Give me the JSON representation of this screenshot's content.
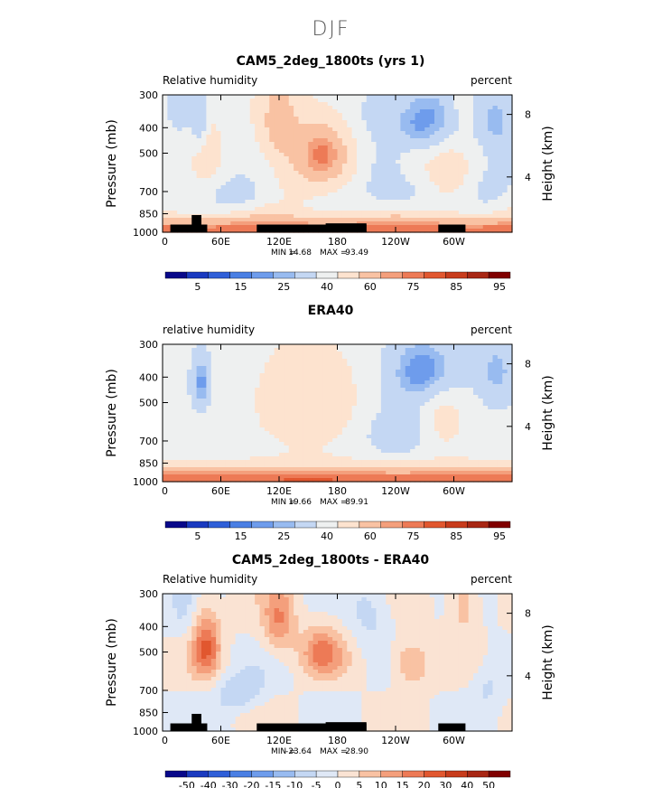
{
  "figure_title": "DJF",
  "colors": {
    "rh_palette": [
      "#08088a",
      "#1a3ac0",
      "#2f5fd8",
      "#4a7fe4",
      "#6e9cec",
      "#98bbf0",
      "#c4d7f3",
      "#eef0f0",
      "#fde3cf",
      "#f9c2a3",
      "#f49f7c",
      "#ed7a56",
      "#e1572f",
      "#c83c1c",
      "#a82714",
      "#800000"
    ],
    "diff_palette": [
      "#08088a",
      "#1a3ac0",
      "#2f5fd8",
      "#4a7fe4",
      "#6e9cec",
      "#98bbf0",
      "#c4d7f3",
      "#dfe8f6",
      "#fae3d3",
      "#f9c2a3",
      "#f49f7c",
      "#ed7a56",
      "#e1572f",
      "#c83c1c",
      "#a82714",
      "#800000"
    ],
    "topography": "#000000"
  },
  "chart_data": [
    {
      "type": "heatmap",
      "title": "CAM5_2deg_1800ts (yrs 1)",
      "left_label": "Relative humidity",
      "right_label": "percent",
      "ylabel": "Pressure (mb)",
      "ylabel_right": "Height (km)",
      "pressure_ticks": [
        "300",
        "400",
        "500",
        "700",
        "850",
        "1000"
      ],
      "height_ticks": [
        "8",
        "4"
      ],
      "lon_ticks": [
        "0",
        "60E",
        "120E",
        "180",
        "120W",
        "60W"
      ],
      "min_text": "MIN =",
      "min_value": "14.68",
      "max_text": "MAX =",
      "max_value": "93.49",
      "colorbar_levels": [
        "5",
        "15",
        "25",
        "40",
        "60",
        "75",
        "85",
        "95"
      ],
      "field": "model"
    },
    {
      "type": "heatmap",
      "title": "ERA40",
      "left_label": "relative humidity",
      "right_label": "percent",
      "ylabel": "Pressure (mb)",
      "ylabel_right": "Height (km)",
      "pressure_ticks": [
        "300",
        "400",
        "500",
        "700",
        "850",
        "1000"
      ],
      "height_ticks": [
        "8",
        "4"
      ],
      "lon_ticks": [
        "0",
        "60E",
        "120E",
        "180",
        "120W",
        "60W"
      ],
      "min_text": "MIN =",
      "min_value": "19.66",
      "max_text": "MAX =",
      "max_value": "89.91",
      "colorbar_levels": [
        "5",
        "15",
        "25",
        "40",
        "60",
        "75",
        "85",
        "95"
      ],
      "field": "obs"
    },
    {
      "type": "heatmap",
      "title": "CAM5_2deg_1800ts - ERA40",
      "left_label": "Relative humidity",
      "right_label": "percent",
      "ylabel": "Pressure (mb)",
      "ylabel_right": "Height (km)",
      "pressure_ticks": [
        "300",
        "400",
        "500",
        "700",
        "850",
        "1000"
      ],
      "height_ticks": [
        "8",
        "4"
      ],
      "lon_ticks": [
        "0",
        "60E",
        "120E",
        "180",
        "120W",
        "60W"
      ],
      "min_text": "MIN =",
      "min_value": "-23.64",
      "max_text": "MAX =",
      "max_value": "28.90",
      "colorbar_levels": [
        "-50",
        "-40",
        "-30",
        "-20",
        "-15",
        "-10",
        "-5",
        "0",
        "5",
        "10",
        "15",
        "20",
        "30",
        "40",
        "50"
      ],
      "field": "diff"
    }
  ]
}
